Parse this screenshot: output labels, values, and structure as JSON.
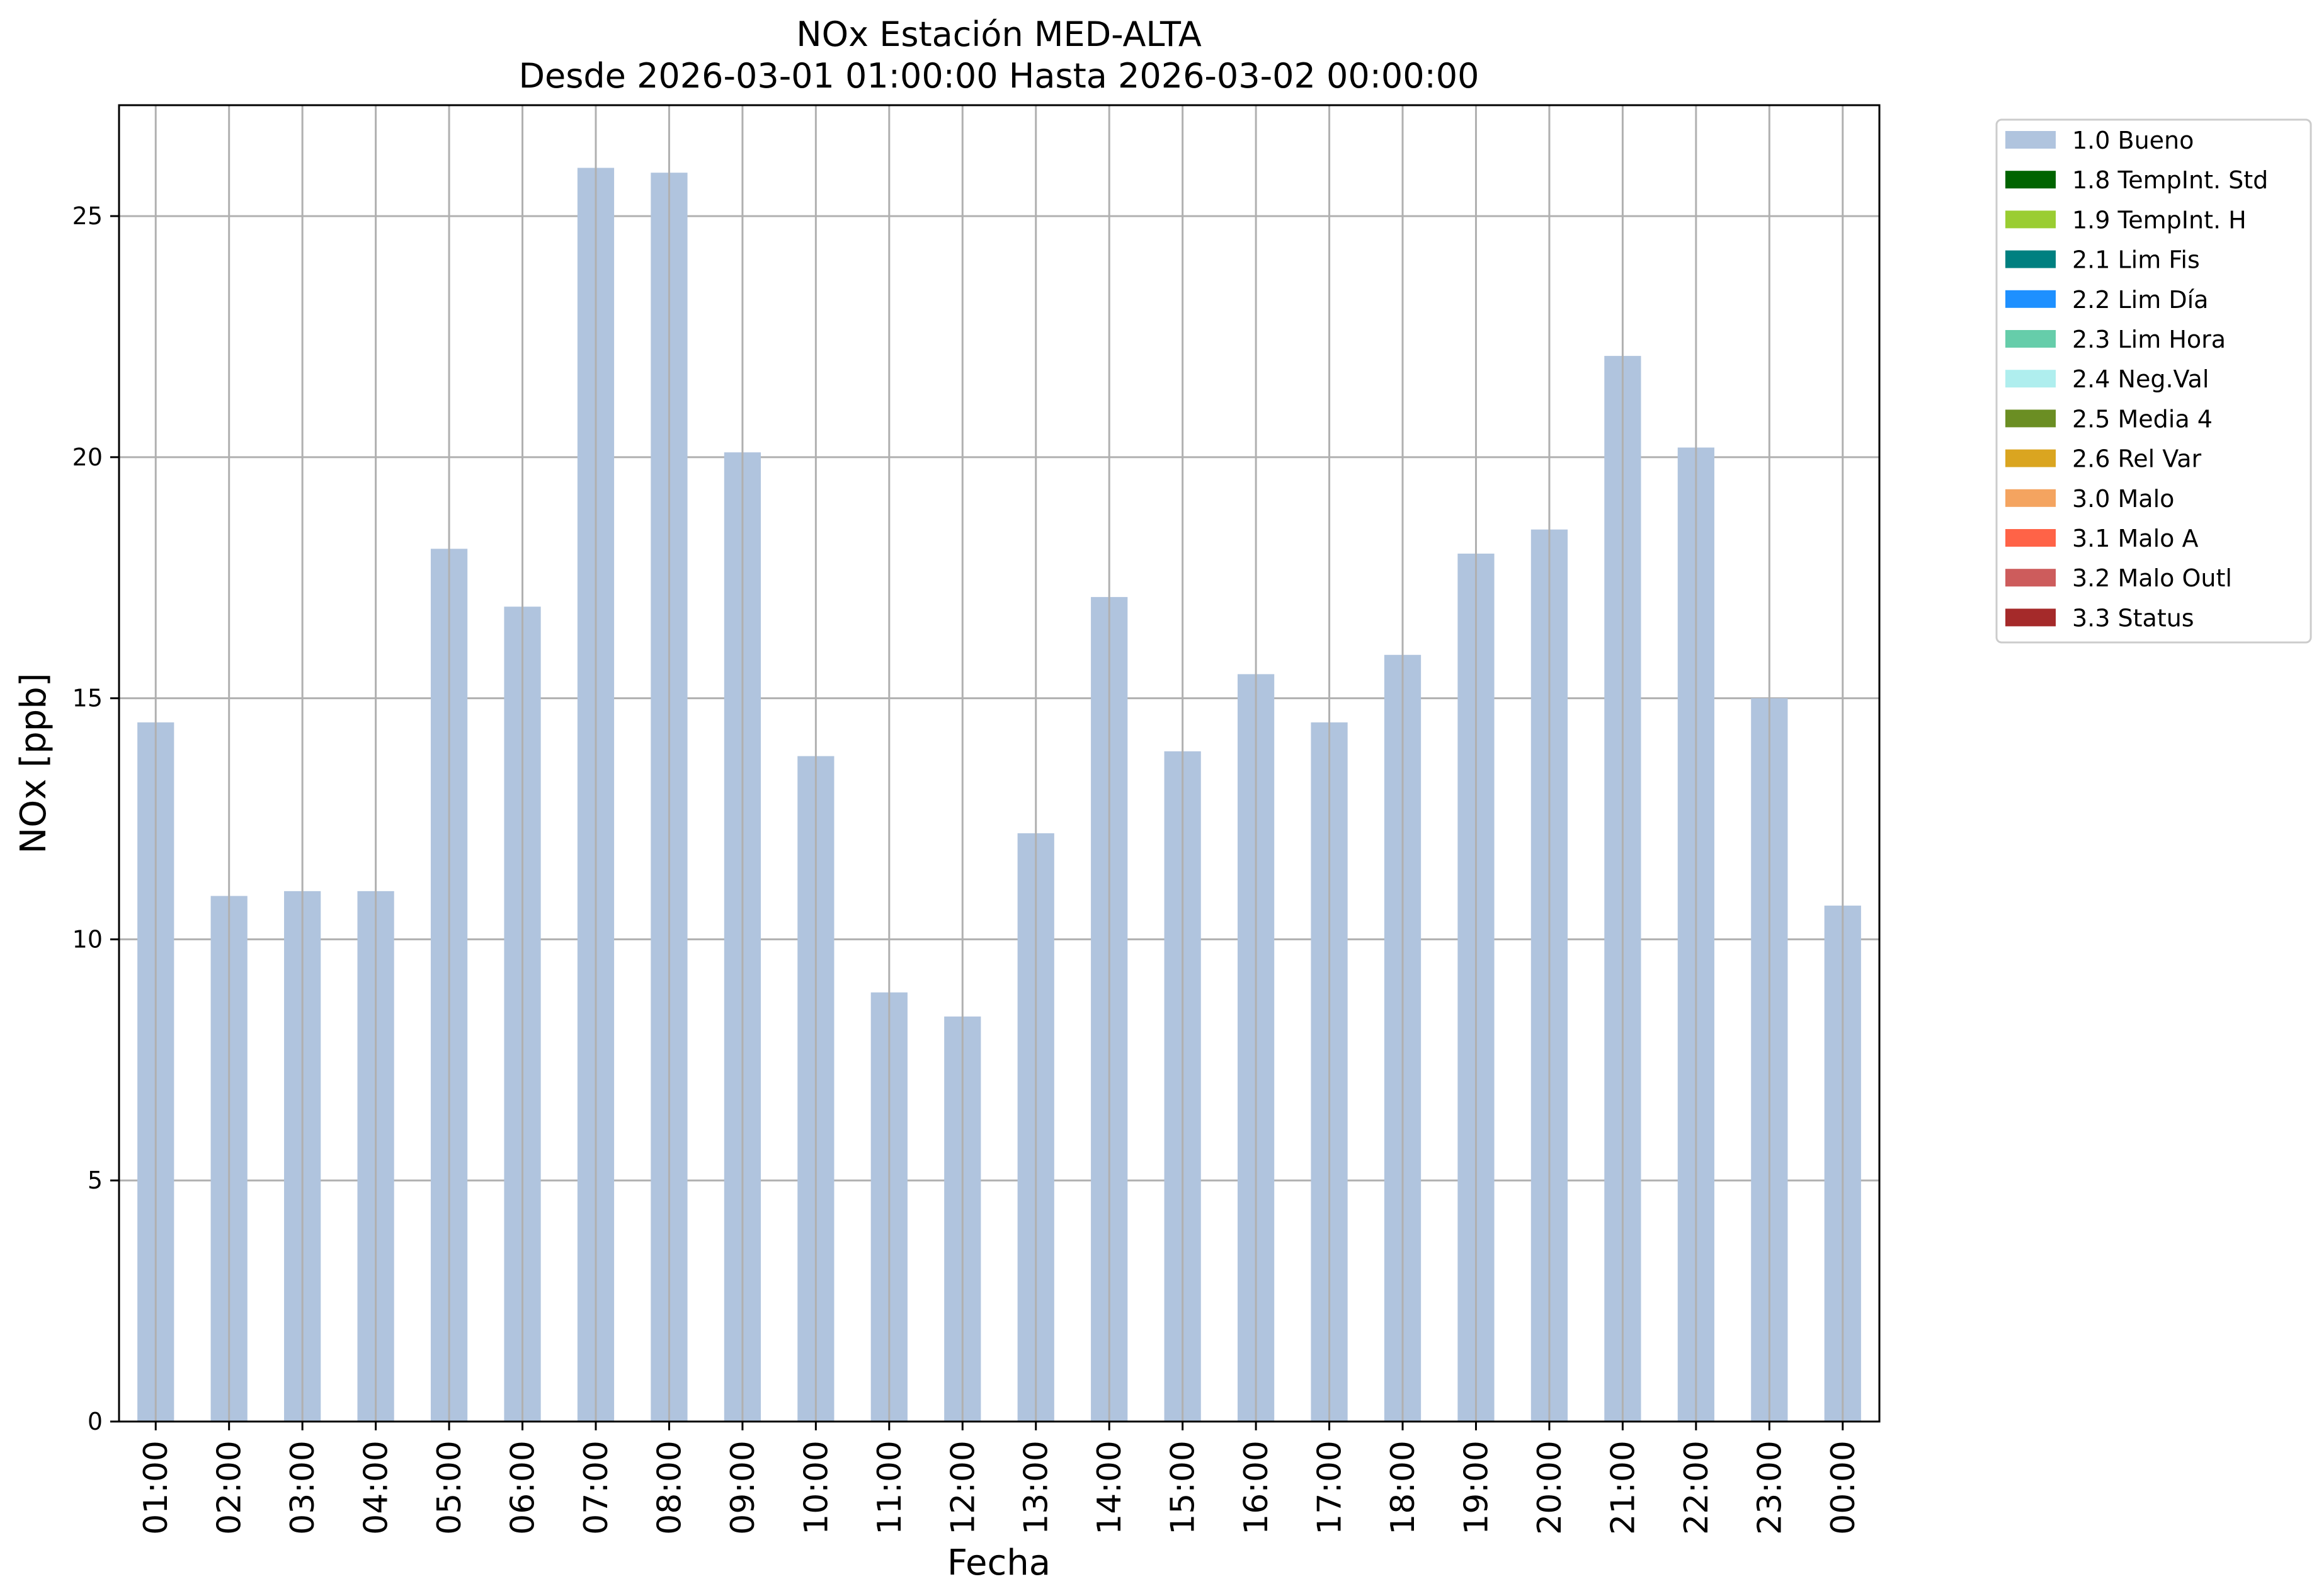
{
  "chart_data": {
    "type": "bar",
    "title": "NOx Estación MED-ALTA",
    "subtitle": "Desde 2026-03-01 01:00:00 Hasta 2026-03-02 00:00:00",
    "xlabel": "Fecha",
    "ylabel": "NOx [ppb]",
    "ylim": [
      0,
      27.3
    ],
    "yticks": [
      0,
      5,
      10,
      15,
      20,
      25
    ],
    "grid": true,
    "legend_position": "outside-top-right",
    "categories": [
      "01:00",
      "02:00",
      "03:00",
      "04:00",
      "05:00",
      "06:00",
      "07:00",
      "08:00",
      "09:00",
      "10:00",
      "11:00",
      "12:00",
      "13:00",
      "14:00",
      "15:00",
      "16:00",
      "17:00",
      "18:00",
      "19:00",
      "20:00",
      "21:00",
      "22:00",
      "23:00",
      "00:00"
    ],
    "series": [
      {
        "name": "1.0 Bueno",
        "color": "#b0c4de",
        "values": [
          14.5,
          10.9,
          11.0,
          11.0,
          18.1,
          16.9,
          26.0,
          25.9,
          20.1,
          13.8,
          8.9,
          8.4,
          12.2,
          17.1,
          13.9,
          15.5,
          14.5,
          15.9,
          18.0,
          18.5,
          22.1,
          20.2,
          15.0,
          10.7
        ]
      }
    ],
    "legend": [
      {
        "label": "1.0 Bueno",
        "color": "#b0c4de"
      },
      {
        "label": "1.8 TempInt. Std",
        "color": "#006400"
      },
      {
        "label": "1.9 TempInt. H",
        "color": "#9acd32"
      },
      {
        "label": "2.1 Lim Fis",
        "color": "#008080"
      },
      {
        "label": "2.2 Lim Día",
        "color": "#1e90ff"
      },
      {
        "label": "2.3 Lim Hora",
        "color": "#66cdaa"
      },
      {
        "label": "2.4 Neg.Val",
        "color": "#afeeee"
      },
      {
        "label": "2.5 Media 4",
        "color": "#6b8e23"
      },
      {
        "label": "2.6 Rel Var",
        "color": "#daa520"
      },
      {
        "label": "3.0 Malo",
        "color": "#f4a460"
      },
      {
        "label": "3.1 Malo A",
        "color": "#ff6347"
      },
      {
        "label": "3.2 Malo Outl",
        "color": "#cd5c5c"
      },
      {
        "label": "3.3 Status",
        "color": "#a52a2a"
      }
    ]
  }
}
